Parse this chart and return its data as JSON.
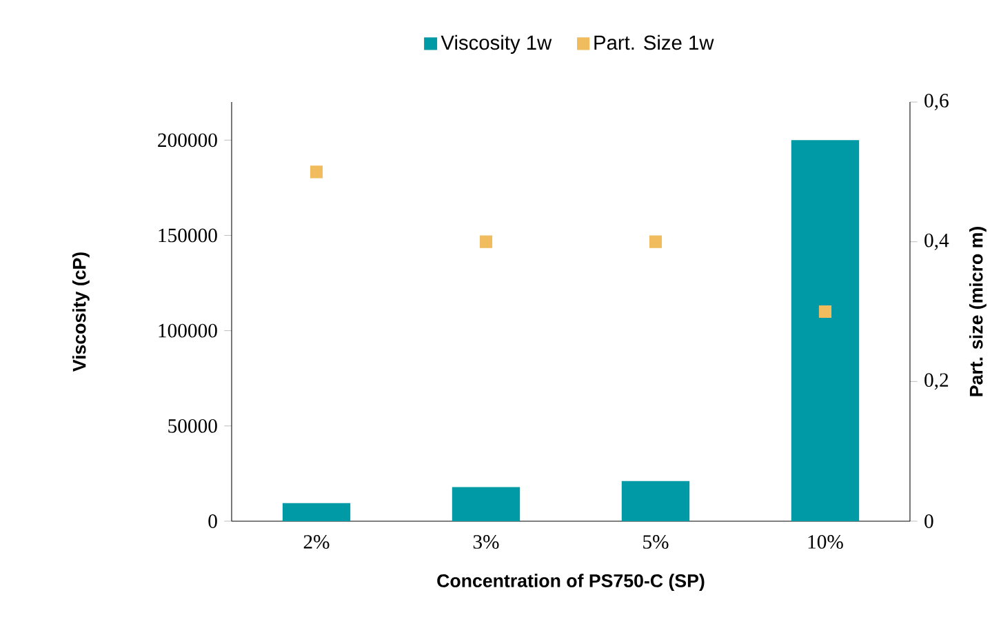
{
  "chart_data": {
    "type": "bar",
    "categories": [
      "2%",
      "3%",
      "5%",
      "10%"
    ],
    "xlabel": "Concentration of  PS750-C (SP)",
    "ylabel": "Viscosity (cP)",
    "y2label": "Part. size (micro m)",
    "series": [
      {
        "name": "Viscosity 1w",
        "color": "#0099a6",
        "values": [
          9500,
          17900,
          21100,
          200000
        ]
      },
      {
        "name": "Part. Size 1w",
        "type": "scatter",
        "axis": "y2",
        "color": "#f0bc5e",
        "values": [
          0.5,
          0.4,
          0.4,
          0.3
        ]
      }
    ],
    "ylim": [
      0,
      220000
    ],
    "yticks": [
      0,
      50000,
      100000,
      150000,
      200000
    ],
    "y2lim": [
      0,
      0.6
    ],
    "y2ticks": [
      0,
      {
        "value": 0.2,
        "label": "0,2"
      },
      {
        "value": 0.4,
        "label": "0,4"
      },
      {
        "value": 0.6,
        "label": "0,6"
      }
    ],
    "legend": "top",
    "marker": "square",
    "grid": false
  }
}
